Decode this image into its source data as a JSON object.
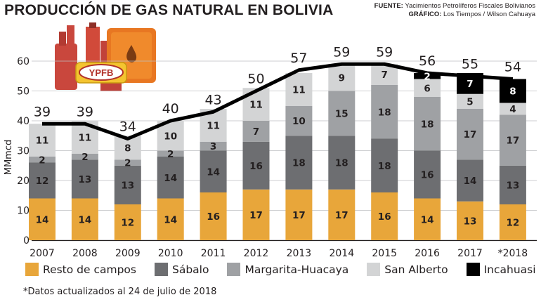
{
  "header": {
    "title": "PRODUCCIÓN DE GAS NATURAL EN BOLIVIA",
    "source_label": "FUENTE:",
    "source_text": "Yacimientos Petrolíferos Fiscales Bolivianos",
    "graphic_label": "GRÁFICO:",
    "graphic_text": "Los Tiempos / Wilson Cahuaya"
  },
  "logo": {
    "text": "YPFB",
    "icon": "gas-plant-illustration"
  },
  "footnote": "*Datos actualizados al 24 de julio de 2018",
  "chart_data": {
    "type": "bar",
    "stacked": true,
    "ylabel": "MMmcd",
    "xlabel": "",
    "ylim": [
      0,
      60
    ],
    "yticks": [
      0,
      10,
      20,
      30,
      40,
      50,
      60
    ],
    "grid": true,
    "legend_position": "bottom",
    "categories": [
      "2007",
      "2008",
      "2009",
      "2010",
      "2011",
      "2012",
      "2013",
      "2014",
      "2015",
      "2016",
      "2017",
      "*2018"
    ],
    "series": [
      {
        "name": "Resto de campos",
        "color": "#e8a63a",
        "values": [
          14,
          14,
          12,
          14,
          16,
          17,
          17,
          17,
          16,
          14,
          13,
          12
        ]
      },
      {
        "name": "Sábalo",
        "color": "#6d6e71",
        "values": [
          12,
          13,
          13,
          14,
          14,
          16,
          18,
          18,
          18,
          16,
          14,
          13
        ]
      },
      {
        "name": "Margarita-Huacaya",
        "color": "#9fa1a4",
        "values": [
          2,
          2,
          2,
          2,
          3,
          7,
          10,
          15,
          18,
          18,
          17,
          17
        ]
      },
      {
        "name": "San Alberto",
        "color": "#d3d4d5",
        "values": [
          11,
          11,
          8,
          10,
          11,
          11,
          11,
          9,
          7,
          6,
          5,
          4
        ]
      },
      {
        "name": "Incahuasi",
        "color": "#000000",
        "values": [
          0,
          0,
          0,
          0,
          0,
          0,
          0,
          0,
          0,
          2,
          7,
          8
        ]
      }
    ],
    "totals": [
      39,
      39,
      34,
      40,
      43,
      50,
      57,
      59,
      59,
      56,
      55,
      54
    ],
    "line_series": {
      "values": [
        39,
        39,
        34,
        40,
        43,
        50,
        57,
        59,
        59,
        56,
        55,
        54
      ],
      "color": "#000000"
    }
  }
}
